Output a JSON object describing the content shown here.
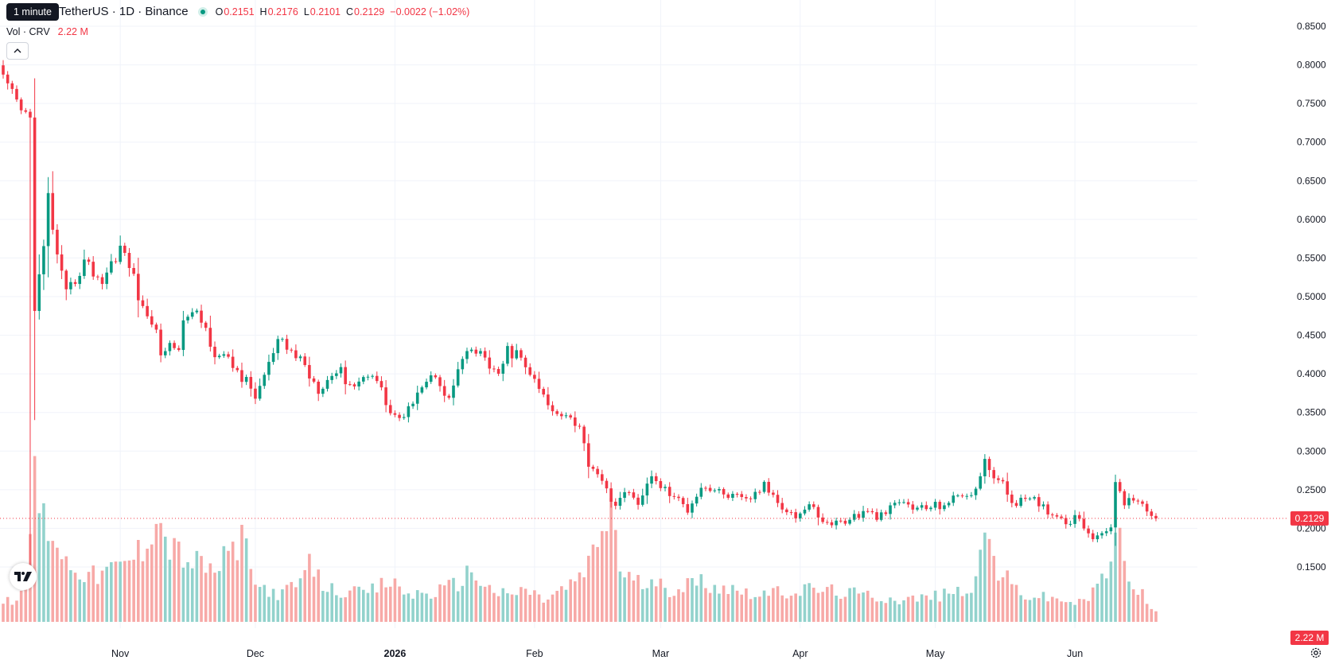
{
  "header": {
    "tooltip": "1 minute",
    "symbol_title": "TetherUS · 1D · Binance",
    "ohlc": [
      {
        "key": "O",
        "value": "0.2151"
      },
      {
        "key": "H",
        "value": "0.2176"
      },
      {
        "key": "L",
        "value": "0.2101"
      },
      {
        "key": "C",
        "value": "0.2129"
      }
    ],
    "change": "−0.0022 (−1.02%)",
    "volume_label": "Vol · CRV",
    "volume_value": "2.22 M"
  },
  "colors": {
    "up": "#089981",
    "down": "#f23645",
    "up_volume": "#92d2cc",
    "down_volume": "#f7a9a7"
  },
  "icons": [
    "chevron-up-icon",
    "tradingview-logo-icon",
    "settings-gear-icon"
  ],
  "chart_data": {
    "type": "candlestick",
    "price_axis": {
      "ticks": [
        "0.8500",
        "0.8000",
        "0.7500",
        "0.7000",
        "0.6500",
        "0.6000",
        "0.5500",
        "0.5000",
        "0.4500",
        "0.4000",
        "0.3500",
        "0.3000",
        "0.2500",
        "0.2000",
        "0.1500"
      ],
      "last_price_label": "0.2129",
      "last_price": 0.2129,
      "last_volume_label": "2.22 M"
    },
    "time_axis": {
      "labels": [
        {
          "label": "Nov",
          "bold": false
        },
        {
          "label": "Dec",
          "bold": false
        },
        {
          "label": "2026",
          "bold": true
        },
        {
          "label": "Feb",
          "bold": false
        },
        {
          "label": "Mar",
          "bold": false
        },
        {
          "label": "Apr",
          "bold": false
        },
        {
          "label": "May",
          "bold": false
        },
        {
          "label": "Jun",
          "bold": false
        }
      ]
    },
    "anchors": [
      [
        0,
        0.78
      ],
      [
        4,
        0.74
      ],
      [
        6,
        0.73
      ],
      [
        7,
        0.49
      ],
      [
        9,
        0.56
      ],
      [
        10,
        0.63
      ],
      [
        12,
        0.55
      ],
      [
        14,
        0.5
      ],
      [
        18,
        0.545
      ],
      [
        22,
        0.52
      ],
      [
        26,
        0.565
      ],
      [
        29,
        0.525
      ],
      [
        31,
        0.48
      ],
      [
        33,
        0.47
      ],
      [
        35,
        0.43
      ],
      [
        39,
        0.44
      ],
      [
        41,
        0.48
      ],
      [
        44,
        0.47
      ],
      [
        47,
        0.43
      ],
      [
        52,
        0.405
      ],
      [
        56,
        0.37
      ],
      [
        61,
        0.44
      ],
      [
        66,
        0.42
      ],
      [
        70,
        0.38
      ],
      [
        74,
        0.405
      ],
      [
        78,
        0.385
      ],
      [
        82,
        0.405
      ],
      [
        86,
        0.35
      ],
      [
        89,
        0.34
      ],
      [
        92,
        0.38
      ],
      [
        96,
        0.4
      ],
      [
        99,
        0.365
      ],
      [
        101,
        0.405
      ],
      [
        104,
        0.43
      ],
      [
        107,
        0.42
      ],
      [
        110,
        0.395
      ],
      [
        112,
        0.43
      ],
      [
        114,
        0.425
      ],
      [
        117,
        0.4
      ],
      [
        119,
        0.38
      ],
      [
        122,
        0.35
      ],
      [
        125,
        0.35
      ],
      [
        128,
        0.33
      ],
      [
        130,
        0.285
      ],
      [
        133,
        0.265
      ],
      [
        135,
        0.23
      ],
      [
        138,
        0.245
      ],
      [
        141,
        0.235
      ],
      [
        144,
        0.265
      ],
      [
        148,
        0.245
      ],
      [
        152,
        0.225
      ],
      [
        155,
        0.255
      ],
      [
        160,
        0.245
      ],
      [
        165,
        0.235
      ],
      [
        169,
        0.255
      ],
      [
        173,
        0.23
      ],
      [
        176,
        0.215
      ],
      [
        179,
        0.23
      ],
      [
        183,
        0.205
      ],
      [
        187,
        0.21
      ],
      [
        191,
        0.22
      ],
      [
        195,
        0.215
      ],
      [
        199,
        0.235
      ],
      [
        203,
        0.225
      ],
      [
        208,
        0.23
      ],
      [
        212,
        0.24
      ],
      [
        216,
        0.25
      ],
      [
        218,
        0.285
      ],
      [
        222,
        0.255
      ],
      [
        224,
        0.235
      ],
      [
        229,
        0.235
      ],
      [
        233,
        0.22
      ],
      [
        236,
        0.21
      ],
      [
        239,
        0.215
      ],
      [
        241,
        0.195
      ],
      [
        243,
        0.185
      ],
      [
        245,
        0.2
      ],
      [
        246,
        0.205
      ],
      [
        247,
        0.255
      ],
      [
        249,
        0.235
      ],
      [
        252,
        0.24
      ],
      [
        254,
        0.225
      ],
      [
        255,
        0.215
      ],
      [
        256,
        0.2129
      ]
    ],
    "volume_profile": [
      [
        0,
        0.1
      ],
      [
        5,
        0.15
      ],
      [
        6,
        0.55
      ],
      [
        7,
        0.9
      ],
      [
        8,
        0.6
      ],
      [
        11,
        0.5
      ],
      [
        14,
        0.33
      ],
      [
        20,
        0.25
      ],
      [
        26,
        0.3
      ],
      [
        31,
        0.4
      ],
      [
        34,
        0.62
      ],
      [
        36,
        0.45
      ],
      [
        40,
        0.35
      ],
      [
        47,
        0.28
      ],
      [
        53,
        0.45
      ],
      [
        56,
        0.2
      ],
      [
        62,
        0.15
      ],
      [
        66,
        0.22
      ],
      [
        68,
        0.3
      ],
      [
        72,
        0.18
      ],
      [
        80,
        0.15
      ],
      [
        86,
        0.22
      ],
      [
        90,
        0.15
      ],
      [
        96,
        0.16
      ],
      [
        100,
        0.2
      ],
      [
        104,
        0.28
      ],
      [
        108,
        0.18
      ],
      [
        112,
        0.14
      ],
      [
        116,
        0.18
      ],
      [
        120,
        0.12
      ],
      [
        126,
        0.2
      ],
      [
        130,
        0.3
      ],
      [
        133,
        0.5
      ],
      [
        135,
        0.65
      ],
      [
        137,
        0.3
      ],
      [
        140,
        0.22
      ],
      [
        148,
        0.18
      ],
      [
        155,
        0.22
      ],
      [
        162,
        0.18
      ],
      [
        170,
        0.15
      ],
      [
        180,
        0.18
      ],
      [
        190,
        0.15
      ],
      [
        200,
        0.12
      ],
      [
        210,
        0.15
      ],
      [
        216,
        0.2
      ],
      [
        218,
        0.5
      ],
      [
        221,
        0.28
      ],
      [
        226,
        0.15
      ],
      [
        235,
        0.12
      ],
      [
        240,
        0.1
      ],
      [
        243,
        0.2
      ],
      [
        246,
        0.3
      ],
      [
        247,
        0.55
      ],
      [
        249,
        0.3
      ],
      [
        253,
        0.15
      ],
      [
        256,
        0.05
      ]
    ]
  }
}
